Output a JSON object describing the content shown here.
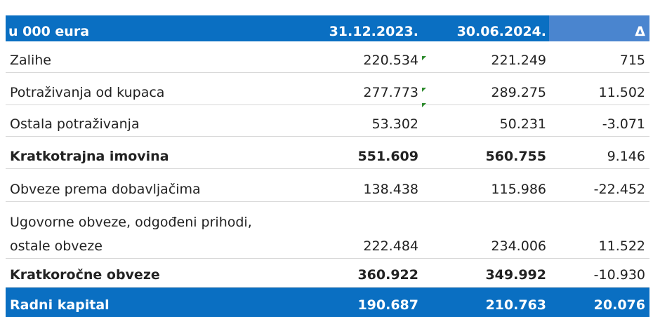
{
  "table": {
    "header": [
      "u 000 eura",
      "31.12.2023.",
      "30.06.2024.",
      "Δ"
    ],
    "rows": [
      [
        "Zalihe",
        "220.534",
        "221.249",
        "715"
      ],
      [
        "Potraživanja od kupaca",
        "277.773",
        "289.275",
        "11.502"
      ],
      [
        "Ostala potraživanja",
        "53.302",
        "50.231",
        "-3.071"
      ],
      [
        "Kratkotrajna imovina",
        "551.609",
        "560.755",
        "9.146"
      ],
      [
        "Obveze prema dobavljačima",
        "138.438",
        "115.986",
        "-22.452"
      ],
      [
        "Ugovorne obveze, odgođeni prihodi,\nostale obveze",
        "222.484",
        "234.006",
        "11.522"
      ],
      [
        "Kratkoročne obveze",
        "360.922",
        "349.992",
        "-10.930"
      ],
      [
        "Radni kapital",
        "190.687",
        "210.763",
        "20.076"
      ]
    ]
  }
}
